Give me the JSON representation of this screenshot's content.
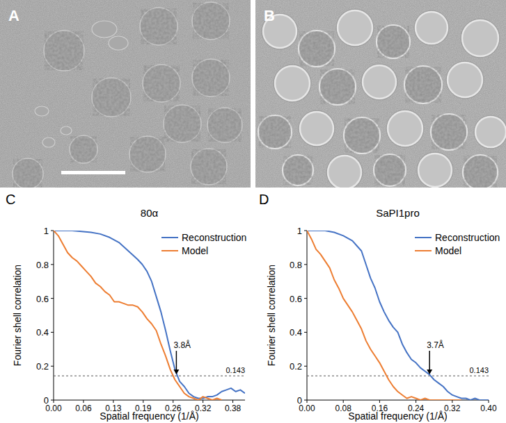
{
  "images": [
    {
      "label": "A",
      "scale_bar": true
    },
    {
      "label": "B",
      "scale_bar": false
    }
  ],
  "chart_data": [
    {
      "type": "line",
      "panel_label": "C",
      "title": "80α",
      "x_label": "Spatial frequency (1/Å)",
      "y_label": "Fourier shell correlation",
      "xlim": [
        0,
        0.41
      ],
      "ylim": [
        0,
        1
      ],
      "xticks": [
        {
          "value": 0,
          "label": "0.00"
        },
        {
          "value": 0.064,
          "label": "0.06"
        },
        {
          "value": 0.128,
          "label": "0.13"
        },
        {
          "value": 0.192,
          "label": "0.19"
        },
        {
          "value": 0.256,
          "label": "0.26"
        },
        {
          "value": 0.32,
          "label": "0.32"
        },
        {
          "value": 0.384,
          "label": "0.38"
        }
      ],
      "yticks": [
        0,
        0.2,
        0.4,
        0.6,
        0.8,
        1
      ],
      "legend": "upper right",
      "reference_line": 0.143,
      "annotations": [
        {
          "text": "3.8Å",
          "x": 0.263,
          "y": 0.143
        }
      ],
      "series": [
        {
          "name": "Reconstruction",
          "color": "#4472c4",
          "x": [
            0,
            0.02,
            0.04,
            0.06,
            0.08,
            0.1,
            0.12,
            0.14,
            0.16,
            0.18,
            0.19,
            0.2,
            0.21,
            0.22,
            0.23,
            0.24,
            0.25,
            0.26,
            0.27,
            0.28,
            0.29,
            0.3,
            0.31,
            0.32,
            0.33,
            0.34,
            0.35,
            0.36,
            0.37,
            0.38,
            0.39,
            0.4,
            0.41
          ],
          "values": [
            1,
            1,
            1,
            0.995,
            0.99,
            0.98,
            0.96,
            0.93,
            0.88,
            0.83,
            0.8,
            0.76,
            0.7,
            0.61,
            0.52,
            0.41,
            0.29,
            0.18,
            0.11,
            0.08,
            0.04,
            0.02,
            0.01,
            0.01,
            0.02,
            0.02,
            0.03,
            0.05,
            0.06,
            0.07,
            0.05,
            0.06,
            0.04
          ]
        },
        {
          "name": "Model",
          "color": "#ed7d31",
          "x": [
            0,
            0.01,
            0.02,
            0.03,
            0.04,
            0.05,
            0.06,
            0.07,
            0.08,
            0.09,
            0.1,
            0.11,
            0.12,
            0.13,
            0.14,
            0.15,
            0.16,
            0.17,
            0.18,
            0.19,
            0.2,
            0.21,
            0.22,
            0.23,
            0.24,
            0.25,
            0.26,
            0.27,
            0.28,
            0.29,
            0.3,
            0.31,
            0.32,
            0.33,
            0.34,
            0.35,
            0.36
          ],
          "values": [
            1,
            0.97,
            0.92,
            0.87,
            0.84,
            0.82,
            0.79,
            0.76,
            0.73,
            0.69,
            0.67,
            0.64,
            0.62,
            0.58,
            0.58,
            0.57,
            0.56,
            0.56,
            0.55,
            0.52,
            0.48,
            0.45,
            0.41,
            0.33,
            0.26,
            0.18,
            0.12,
            0.08,
            0.04,
            0.02,
            0.01,
            0,
            0.02,
            0.01,
            0,
            0.01,
            0
          ]
        }
      ]
    },
    {
      "type": "line",
      "panel_label": "D",
      "title": "SaPI1pro",
      "x_label": "Spatial frequency (1/Å)",
      "y_label": "Fourier shell correlation",
      "xlim": [
        0,
        0.4
      ],
      "ylim": [
        0,
        1
      ],
      "xticks": [
        {
          "value": 0,
          "label": "0.00"
        },
        {
          "value": 0.08,
          "label": "0.08"
        },
        {
          "value": 0.16,
          "label": "0.16"
        },
        {
          "value": 0.24,
          "label": "0.24"
        },
        {
          "value": 0.32,
          "label": "0.32"
        },
        {
          "value": 0.4,
          "label": "0.40"
        }
      ],
      "yticks": [
        0,
        0.2,
        0.4,
        0.6,
        0.8,
        1
      ],
      "legend": "upper right",
      "reference_line": 0.143,
      "annotations": [
        {
          "text": "3.7Å",
          "x": 0.27,
          "y": 0.143
        }
      ],
      "series": [
        {
          "name": "Reconstruction",
          "color": "#4472c4",
          "x": [
            0,
            0.02,
            0.04,
            0.06,
            0.08,
            0.1,
            0.11,
            0.12,
            0.13,
            0.14,
            0.15,
            0.16,
            0.17,
            0.18,
            0.19,
            0.2,
            0.21,
            0.22,
            0.23,
            0.24,
            0.25,
            0.26,
            0.27,
            0.28,
            0.29,
            0.3,
            0.31,
            0.32,
            0.33,
            0.34,
            0.35,
            0.36,
            0.37,
            0.38,
            0.39,
            0.4
          ],
          "values": [
            1,
            1,
            1,
            0.99,
            0.97,
            0.94,
            0.91,
            0.88,
            0.8,
            0.72,
            0.66,
            0.58,
            0.52,
            0.47,
            0.43,
            0.4,
            0.33,
            0.28,
            0.24,
            0.22,
            0.19,
            0.17,
            0.15,
            0.12,
            0.1,
            0.08,
            0.05,
            0.03,
            0.02,
            0.01,
            0.01,
            0,
            0.01,
            0,
            0,
            0
          ]
        },
        {
          "name": "Model",
          "color": "#ed7d31",
          "x": [
            0,
            0.01,
            0.02,
            0.03,
            0.04,
            0.05,
            0.06,
            0.07,
            0.08,
            0.09,
            0.1,
            0.11,
            0.12,
            0.13,
            0.14,
            0.15,
            0.16,
            0.17,
            0.18,
            0.19,
            0.2,
            0.21,
            0.22,
            0.23,
            0.24,
            0.25,
            0.26,
            0.27,
            0.28,
            0.29,
            0.3,
            0.31,
            0.32,
            0.33,
            0.34
          ],
          "values": [
            1,
            0.95,
            0.89,
            0.86,
            0.82,
            0.78,
            0.71,
            0.66,
            0.6,
            0.56,
            0.52,
            0.47,
            0.42,
            0.35,
            0.3,
            0.26,
            0.22,
            0.17,
            0.12,
            0.08,
            0.05,
            0.03,
            0.01,
            0.02,
            0.01,
            0,
            0.01,
            0,
            0,
            0,
            0,
            0,
            0,
            0,
            0
          ]
        }
      ]
    }
  ]
}
